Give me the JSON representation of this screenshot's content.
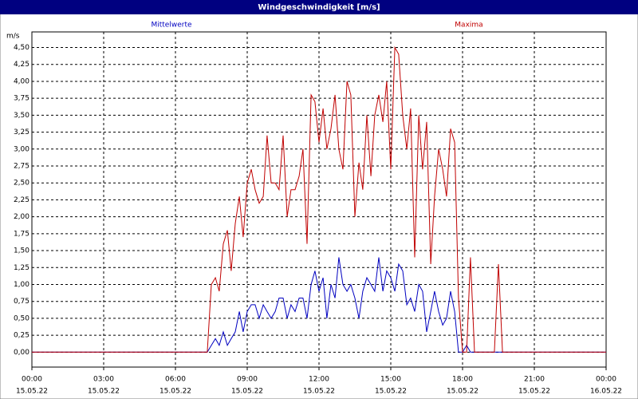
{
  "chart_data": {
    "type": "line",
    "title": "Windgeschwindigkeit [m/s]",
    "y_label": "m/s",
    "x": [
      0,
      7.33,
      7.5,
      7.67,
      7.83,
      8,
      8.17,
      8.33,
      8.5,
      8.67,
      8.83,
      9,
      9.17,
      9.33,
      9.5,
      9.67,
      9.83,
      10,
      10.17,
      10.33,
      10.5,
      10.67,
      10.83,
      11,
      11.17,
      11.33,
      11.5,
      11.67,
      11.83,
      12,
      12.17,
      12.33,
      12.5,
      12.67,
      12.83,
      13,
      13.17,
      13.33,
      13.5,
      13.67,
      13.83,
      14,
      14.17,
      14.33,
      14.5,
      14.67,
      14.83,
      15,
      15.17,
      15.33,
      15.5,
      15.67,
      15.83,
      16,
      16.17,
      16.33,
      16.5,
      16.67,
      16.83,
      17,
      17.17,
      17.33,
      17.5,
      17.67,
      17.83,
      18,
      18.17,
      18.33,
      18.5,
      18.67,
      18.83,
      19,
      19.17,
      19.33,
      19.5,
      19.67,
      24
    ],
    "series": [
      {
        "name": "Mittelwerte",
        "color": "#0000c0",
        "values": [
          0,
          0,
          0.1,
          0.2,
          0.1,
          0.3,
          0.1,
          0.2,
          0.3,
          0.6,
          0.3,
          0.6,
          0.7,
          0.7,
          0.5,
          0.7,
          0.6,
          0.5,
          0.6,
          0.8,
          0.8,
          0.5,
          0.7,
          0.6,
          0.8,
          0.8,
          0.5,
          1.0,
          1.2,
          0.9,
          1.1,
          0.5,
          1.0,
          0.8,
          1.4,
          1.0,
          0.9,
          1.0,
          0.8,
          0.5,
          0.9,
          1.1,
          1.0,
          0.9,
          1.4,
          0.9,
          1.2,
          1.1,
          0.9,
          1.3,
          1.2,
          0.7,
          0.8,
          0.6,
          1.0,
          0.9,
          0.3,
          0.6,
          0.9,
          0.6,
          0.4,
          0.5,
          0.9,
          0.6,
          0,
          0,
          0.1,
          0,
          0,
          0,
          0,
          0,
          0,
          0,
          0,
          0,
          0
        ]
      },
      {
        "name": "Maxima",
        "color": "#c00000",
        "values": [
          0,
          0,
          1.0,
          1.1,
          0.9,
          1.6,
          1.8,
          1.2,
          1.9,
          2.3,
          1.7,
          2.5,
          2.7,
          2.4,
          2.2,
          2.3,
          3.2,
          2.5,
          2.5,
          2.4,
          3.2,
          2.0,
          2.4,
          2.4,
          2.6,
          3.0,
          1.6,
          3.8,
          3.7,
          3.1,
          3.6,
          3.0,
          3.3,
          3.8,
          3.0,
          2.7,
          4.0,
          3.8,
          2.0,
          2.8,
          2.4,
          3.5,
          2.6,
          3.5,
          3.8,
          3.4,
          4.0,
          2.7,
          4.5,
          4.4,
          3.5,
          3.0,
          3.6,
          1.4,
          3.5,
          2.7,
          3.4,
          1.3,
          2.3,
          3.0,
          2.7,
          2.3,
          3.3,
          3.1,
          0.8,
          0,
          0,
          1.4,
          0,
          0,
          0,
          0,
          0,
          0,
          1.3,
          0,
          0
        ]
      }
    ],
    "xlim": [
      0,
      24
    ],
    "xticks": [
      {
        "value": 0,
        "label": "00:00",
        "date": "15.05.22"
      },
      {
        "value": 3,
        "label": "03:00",
        "date": "15.05.22"
      },
      {
        "value": 6,
        "label": "06:00",
        "date": "15.05.22"
      },
      {
        "value": 9,
        "label": "09:00",
        "date": "15.05.22"
      },
      {
        "value": 12,
        "label": "12:00",
        "date": "15.05.22"
      },
      {
        "value": 15,
        "label": "15:00",
        "date": "15.05.22"
      },
      {
        "value": 18,
        "label": "18:00",
        "date": "15.05.22"
      },
      {
        "value": 21,
        "label": "21:00",
        "date": "15.05.22"
      },
      {
        "value": 24,
        "label": "00:00",
        "date": "16.05.22"
      }
    ],
    "ylim": [
      -0.22,
      4.73
    ],
    "yticks": [
      {
        "value": 0,
        "label": "0,00"
      },
      {
        "value": 0.25,
        "label": "0,25"
      },
      {
        "value": 0.5,
        "label": "0,50"
      },
      {
        "value": 0.75,
        "label": "0,75"
      },
      {
        "value": 1,
        "label": "1,00"
      },
      {
        "value": 1.25,
        "label": "1,25"
      },
      {
        "value": 1.5,
        "label": "1,50"
      },
      {
        "value": 1.75,
        "label": "1,75"
      },
      {
        "value": 2,
        "label": "2,00"
      },
      {
        "value": 2.25,
        "label": "2,25"
      },
      {
        "value": 2.5,
        "label": "2,50"
      },
      {
        "value": 2.75,
        "label": "2,75"
      },
      {
        "value": 3,
        "label": "3,00"
      },
      {
        "value": 3.25,
        "label": "3,25"
      },
      {
        "value": 3.5,
        "label": "3,50"
      },
      {
        "value": 3.75,
        "label": "3,75"
      },
      {
        "value": 4,
        "label": "4,00"
      },
      {
        "value": 4.25,
        "label": "4,25"
      },
      {
        "value": 4.5,
        "label": "4,50"
      }
    ],
    "grid": true
  }
}
